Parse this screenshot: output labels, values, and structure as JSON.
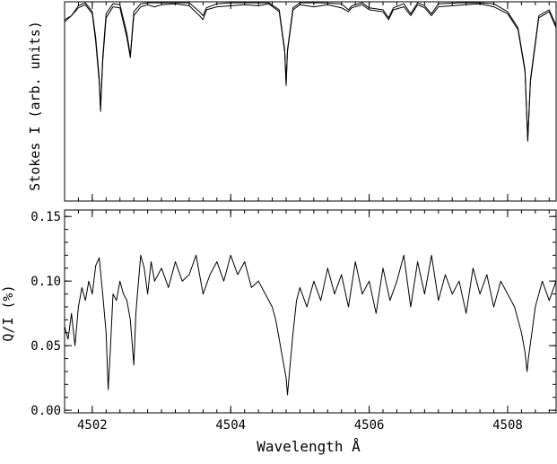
{
  "chart_data": [
    {
      "type": "line",
      "panel": "top",
      "xlabel": "",
      "ylabel": "Stokes I (arb. units)",
      "xlim": [
        4501.6,
        4508.7
      ],
      "ylim": [
        0.0,
        1.0
      ],
      "y_tick_labels_shown": false,
      "x_tick_labels_shown": false,
      "x_ticks": [
        4502,
        4504,
        4506,
        4508
      ],
      "series": [
        {
          "style": "observed",
          "x": [
            4501.6,
            4501.7,
            4501.8,
            4501.9,
            4502.0,
            4502.05,
            4502.1,
            4502.12,
            4502.15,
            4502.2,
            4502.3,
            4502.4,
            4502.5,
            4502.55,
            4502.6,
            4502.7,
            4502.8,
            4502.9,
            4503.0,
            4503.2,
            4503.4,
            4503.55,
            4503.6,
            4503.65,
            4503.8,
            4504.0,
            4504.2,
            4504.4,
            4504.55,
            4504.7,
            4504.78,
            4504.8,
            4504.82,
            4504.9,
            4505.0,
            4505.2,
            4505.4,
            4505.6,
            4505.7,
            4505.75,
            4505.9,
            4506.0,
            4506.2,
            4506.28,
            4506.35,
            4506.5,
            4506.6,
            4506.7,
            4506.8,
            4506.9,
            4507.0,
            4507.2,
            4507.4,
            4507.6,
            4507.8,
            4508.0,
            4508.15,
            4508.25,
            4508.29,
            4508.33,
            4508.45,
            4508.6,
            4508.7
          ],
          "y": [
            0.91,
            0.93,
            0.97,
            0.985,
            0.94,
            0.8,
            0.6,
            0.45,
            0.7,
            0.92,
            0.975,
            0.97,
            0.82,
            0.72,
            0.93,
            0.975,
            0.985,
            0.975,
            0.985,
            0.99,
            0.98,
            0.93,
            0.91,
            0.96,
            0.975,
            0.98,
            0.985,
            0.98,
            0.99,
            0.95,
            0.75,
            0.58,
            0.75,
            0.96,
            0.985,
            0.975,
            0.985,
            0.97,
            0.95,
            0.97,
            0.985,
            0.96,
            0.95,
            0.91,
            0.96,
            0.975,
            0.93,
            0.985,
            0.97,
            0.93,
            0.975,
            0.98,
            0.985,
            0.99,
            0.975,
            0.94,
            0.86,
            0.65,
            0.3,
            0.6,
            0.92,
            0.95,
            0.87
          ]
        },
        {
          "style": "model",
          "x": [
            4501.6,
            4501.7,
            4501.8,
            4501.9,
            4502.0,
            4502.05,
            4502.1,
            4502.12,
            4502.15,
            4502.2,
            4502.3,
            4502.4,
            4502.5,
            4502.55,
            4502.6,
            4502.7,
            4502.8,
            4503.0,
            4503.2,
            4503.4,
            4503.55,
            4503.6,
            4503.65,
            4503.8,
            4504.0,
            4504.3,
            4504.55,
            4504.7,
            4504.78,
            4504.8,
            4504.82,
            4504.9,
            4505.0,
            4505.3,
            4505.6,
            4505.7,
            4505.75,
            4505.9,
            4506.0,
            4506.2,
            4506.28,
            4506.35,
            4506.5,
            4506.6,
            4506.7,
            4506.8,
            4506.9,
            4507.0,
            4507.3,
            4507.6,
            4507.8,
            4508.0,
            4508.15,
            4508.25,
            4508.29,
            4508.33,
            4508.45,
            4508.6,
            4508.7
          ],
          "y": [
            0.9,
            0.93,
            0.98,
            0.995,
            0.95,
            0.82,
            0.62,
            0.46,
            0.72,
            0.94,
            0.99,
            0.985,
            0.84,
            0.73,
            0.95,
            0.99,
            0.995,
            0.995,
            0.995,
            0.995,
            0.95,
            0.93,
            0.97,
            0.99,
            0.995,
            0.995,
            0.995,
            0.96,
            0.76,
            0.59,
            0.76,
            0.97,
            0.995,
            0.995,
            0.99,
            0.96,
            0.98,
            0.995,
            0.97,
            0.96,
            0.92,
            0.97,
            0.99,
            0.94,
            0.995,
            0.98,
            0.94,
            0.99,
            0.995,
            0.995,
            0.99,
            0.95,
            0.87,
            0.66,
            0.31,
            0.61,
            0.93,
            0.96,
            0.88
          ]
        }
      ]
    },
    {
      "type": "line",
      "panel": "bottom",
      "xlabel": "Wavelength  Å",
      "ylabel": "Q/I (%)",
      "xlim": [
        4501.6,
        4508.7
      ],
      "ylim": [
        -0.002,
        0.155
      ],
      "x_ticks": [
        4502,
        4504,
        4506,
        4508
      ],
      "x_tick_labels": [
        "4502",
        "4504",
        "4506",
        "4508"
      ],
      "y_ticks": [
        0.0,
        0.05,
        0.1,
        0.15
      ],
      "y_tick_labels": [
        "0.00",
        "0.05",
        "0.10",
        "0.15"
      ],
      "grid": false,
      "series": [
        {
          "style": "observed",
          "x": [
            4501.6,
            4501.65,
            4501.7,
            4501.75,
            4501.8,
            4501.85,
            4501.9,
            4501.95,
            4502.0,
            4502.05,
            4502.1,
            4502.15,
            4502.2,
            4502.23,
            4502.26,
            4502.3,
            4502.35,
            4502.4,
            4502.45,
            4502.5,
            4502.55,
            4502.6,
            4502.63,
            4502.66,
            4502.7,
            4502.75,
            4502.8,
            4502.85,
            4502.9,
            4503.0,
            4503.1,
            4503.2,
            4503.3,
            4503.4,
            4503.5,
            4503.6,
            4503.7,
            4503.8,
            4503.9,
            4504.0,
            4504.1,
            4504.2,
            4504.3,
            4504.4,
            4504.5,
            4504.6,
            4504.65,
            4504.7,
            4504.75,
            4504.8,
            4504.82,
            4504.85,
            4504.9,
            4504.95,
            4505.0,
            4505.1,
            4505.2,
            4505.3,
            4505.4,
            4505.5,
            4505.6,
            4505.7,
            4505.8,
            4505.9,
            4506.0,
            4506.1,
            4506.2,
            4506.3,
            4506.4,
            4506.5,
            4506.6,
            4506.7,
            4506.8,
            4506.9,
            4507.0,
            4507.1,
            4507.2,
            4507.3,
            4507.4,
            4507.5,
            4507.6,
            4507.7,
            4507.8,
            4507.9,
            4508.0,
            4508.1,
            4508.15,
            4508.2,
            4508.25,
            4508.28,
            4508.3,
            4508.35,
            4508.4,
            4508.5,
            4508.6,
            4508.7
          ],
          "y": [
            0.065,
            0.055,
            0.075,
            0.05,
            0.08,
            0.095,
            0.085,
            0.1,
            0.09,
            0.112,
            0.118,
            0.09,
            0.06,
            0.016,
            0.045,
            0.09,
            0.085,
            0.1,
            0.09,
            0.085,
            0.07,
            0.035,
            0.075,
            0.095,
            0.12,
            0.11,
            0.09,
            0.115,
            0.1,
            0.11,
            0.095,
            0.115,
            0.1,
            0.105,
            0.12,
            0.09,
            0.105,
            0.115,
            0.1,
            0.12,
            0.105,
            0.115,
            0.095,
            0.1,
            0.09,
            0.08,
            0.07,
            0.055,
            0.04,
            0.025,
            0.012,
            0.03,
            0.06,
            0.085,
            0.095,
            0.08,
            0.1,
            0.085,
            0.11,
            0.09,
            0.105,
            0.08,
            0.115,
            0.09,
            0.1,
            0.075,
            0.11,
            0.085,
            0.1,
            0.12,
            0.08,
            0.115,
            0.09,
            0.12,
            0.085,
            0.105,
            0.09,
            0.1,
            0.075,
            0.11,
            0.09,
            0.105,
            0.08,
            0.1,
            0.09,
            0.08,
            0.07,
            0.06,
            0.045,
            0.03,
            0.04,
            0.06,
            0.08,
            0.1,
            0.085,
            0.1
          ]
        }
      ]
    }
  ]
}
